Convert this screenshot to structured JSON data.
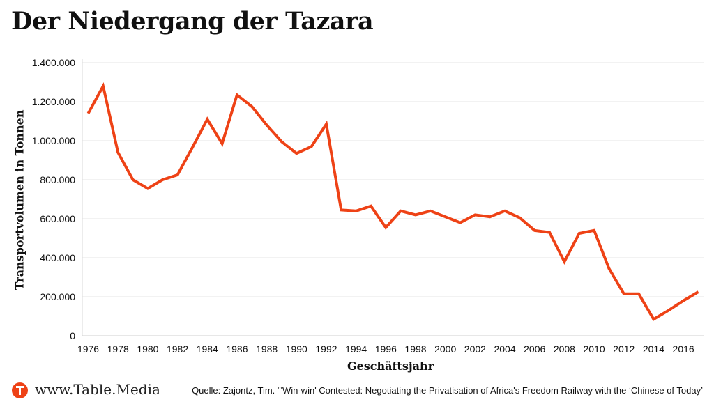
{
  "title": "Der Niedergang der Tazara",
  "chart_data": {
    "type": "line",
    "xlabel": "Geschäftsjahr",
    "ylabel": "Transportvolumen in Tonnen",
    "xlim": [
      1976,
      2017
    ],
    "ylim": [
      0,
      1400000
    ],
    "x_ticks": [
      "1976",
      "1978",
      "1980",
      "1982",
      "1984",
      "1986",
      "1988",
      "1990",
      "1992",
      "1994",
      "1996",
      "1998",
      "2000",
      "2002",
      "2004",
      "2006",
      "2008",
      "2010",
      "2012",
      "2014",
      "2016"
    ],
    "y_ticks": [
      {
        "value": 0,
        "label": "0"
      },
      {
        "value": 200000,
        "label": "200.000"
      },
      {
        "value": 400000,
        "label": "400.000"
      },
      {
        "value": 600000,
        "label": "600.000"
      },
      {
        "value": 800000,
        "label": "800.000"
      },
      {
        "value": 1000000,
        "label": "1.000.000"
      },
      {
        "value": 1200000,
        "label": "1.200.000"
      },
      {
        "value": 1400000,
        "label": "1.400.000"
      }
    ],
    "grid": "horizontal",
    "color": "#ee4216",
    "series": [
      {
        "x": [
          1976,
          1977,
          1978,
          1979,
          1980,
          1981,
          1982,
          1983,
          1984,
          1985,
          1986,
          1987,
          1988,
          1989,
          1990,
          1991,
          1992,
          1993,
          1994,
          1995,
          1996,
          1997,
          1998,
          1999,
          2000,
          2001,
          2002,
          2003,
          2004,
          2005,
          2006,
          2007,
          2008,
          2009,
          2010,
          2011,
          2012,
          2013,
          2014,
          2015,
          2016,
          2017
        ],
        "values": [
          1140000,
          1280000,
          940000,
          800000,
          755000,
          800000,
          825000,
          965000,
          1110000,
          985000,
          1235000,
          1175000,
          1080000,
          995000,
          935000,
          970000,
          1085000,
          645000,
          640000,
          665000,
          555000,
          640000,
          620000,
          640000,
          610000,
          580000,
          620000,
          610000,
          640000,
          605000,
          540000,
          530000,
          380000,
          525000,
          540000,
          345000,
          215000,
          215000,
          85000,
          130000,
          180000,
          225000
        ]
      }
    ]
  },
  "footer": {
    "site": "www.Table.Media",
    "logo_icon": "table-media-t-logo-icon",
    "source": "Quelle: Zajontz, Tim. '\"Win-win' Contested: Negotiating the Privatisation of Africa's Freedom Railway with the ‘Chinese of Today’"
  }
}
